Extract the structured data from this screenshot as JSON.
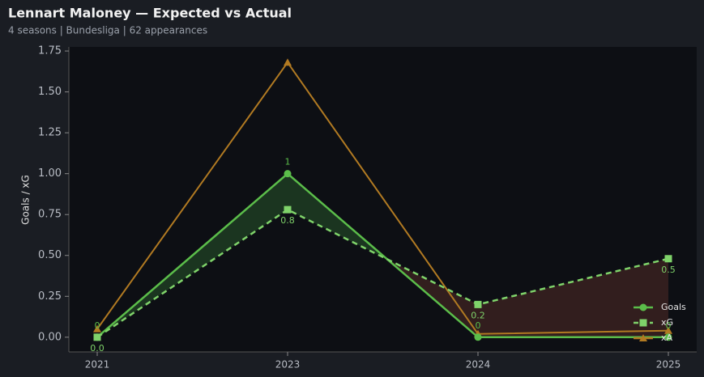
{
  "chart_data": {
    "type": "line",
    "title": "Lennart Maloney — Expected vs Actual",
    "subtitle": "4 seasons | Bundesliga | 62 appearances",
    "y_label": "Goals / xG",
    "categories": [
      "2021",
      "2023",
      "2024",
      "2025"
    ],
    "series": [
      {
        "name": "Goals",
        "color": "#5bbd4a",
        "marker": "circle",
        "dash": false,
        "values": [
          0,
          1,
          0,
          0
        ],
        "show_labels": true
      },
      {
        "name": "xG",
        "color": "#7fd36a",
        "marker": "square",
        "dash": true,
        "values": [
          0,
          0.78,
          0.2,
          0.48
        ],
        "value_labels": [
          "0.0",
          "0.8",
          "0.2",
          "0.5"
        ],
        "show_labels": true
      },
      {
        "name": "xA",
        "color": "#b17a22",
        "marker": "triangle",
        "dash": false,
        "values": [
          0.05,
          1.68,
          0.02,
          0.04
        ],
        "show_labels": false
      }
    ],
    "fill_between": {
      "above_color": "#1d3a21",
      "below_color": "#36201f"
    },
    "ylim": [
      -0.09,
      1.775
    ],
    "yticks": [
      {
        "value": 0,
        "label": "0.00"
      },
      {
        "value": 0.25,
        "label": "0.25"
      },
      {
        "value": 0.5,
        "label": "0.50"
      },
      {
        "value": 0.75,
        "label": "0.75"
      },
      {
        "value": 1,
        "label": "1.00"
      },
      {
        "value": 1.25,
        "label": "1.25"
      },
      {
        "value": 1.5,
        "label": "1.50"
      },
      {
        "value": 1.75,
        "label": "1.75"
      }
    ],
    "legend": "lower right"
  }
}
